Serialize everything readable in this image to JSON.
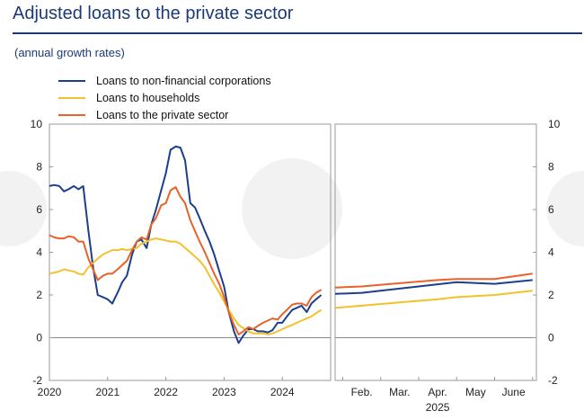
{
  "header": {
    "title": "Adjusted loans to the private sector",
    "subtitle": "(annual growth rates)"
  },
  "chart_data": {
    "type": "line",
    "title": "Adjusted loans to the private sector",
    "subtitle": "(annual growth rates)",
    "ylim": [
      -2,
      10
    ],
    "yticks": [
      -2,
      0,
      2,
      4,
      6,
      8,
      10
    ],
    "legend_position": "top-left",
    "grid": false,
    "panels": [
      {
        "name": "monthly",
        "xlim": [
          2020,
          2024.83
        ],
        "xticks": [
          2020,
          2021,
          2022,
          2023,
          2024
        ],
        "xtick_labels": [
          "2020",
          "2021",
          "2022",
          "2023",
          "2024"
        ]
      },
      {
        "name": "2025 projection",
        "xlim": [
          0.8,
          6.1
        ],
        "xticks": [
          1,
          2,
          3,
          4,
          5,
          6
        ],
        "xtick_labels": [
          "Feb.",
          "Mar.",
          "Apr.",
          "May",
          "June"
        ],
        "xtick_positions": [
          1.5,
          2.5,
          3.5,
          4.5,
          5.5
        ],
        "year_label": "2025"
      }
    ],
    "series": [
      {
        "name": "Loans to non-financial corporations",
        "color": "#1c3f8c",
        "panel1": [
          [
            2020.0,
            7.1
          ],
          [
            2020.08,
            7.15
          ],
          [
            2020.17,
            7.1
          ],
          [
            2020.25,
            6.85
          ],
          [
            2020.33,
            6.95
          ],
          [
            2020.42,
            7.1
          ],
          [
            2020.5,
            6.95
          ],
          [
            2020.58,
            7.1
          ],
          [
            2020.67,
            5.0
          ],
          [
            2020.75,
            3.3
          ],
          [
            2020.83,
            2.0
          ],
          [
            2020.92,
            1.9
          ],
          [
            2021.0,
            1.8
          ],
          [
            2021.08,
            1.6
          ],
          [
            2021.17,
            2.1
          ],
          [
            2021.25,
            2.6
          ],
          [
            2021.33,
            2.9
          ],
          [
            2021.42,
            3.9
          ],
          [
            2021.5,
            4.5
          ],
          [
            2021.58,
            4.6
          ],
          [
            2021.67,
            4.2
          ],
          [
            2021.75,
            5.3
          ],
          [
            2021.83,
            6.0
          ],
          [
            2021.92,
            6.9
          ],
          [
            2022.0,
            7.7
          ],
          [
            2022.08,
            8.8
          ],
          [
            2022.17,
            8.95
          ],
          [
            2022.25,
            8.9
          ],
          [
            2022.33,
            8.3
          ],
          [
            2022.42,
            6.3
          ],
          [
            2022.5,
            6.1
          ],
          [
            2022.58,
            5.6
          ],
          [
            2022.67,
            5.0
          ],
          [
            2022.75,
            4.5
          ],
          [
            2022.83,
            3.9
          ],
          [
            2022.92,
            3.1
          ],
          [
            2023.0,
            2.4
          ],
          [
            2023.08,
            1.2
          ],
          [
            2023.17,
            0.3
          ],
          [
            2023.25,
            -0.25
          ],
          [
            2023.33,
            0.1
          ],
          [
            2023.42,
            0.4
          ],
          [
            2023.5,
            0.4
          ],
          [
            2023.58,
            0.3
          ],
          [
            2023.67,
            0.3
          ],
          [
            2023.75,
            0.25
          ],
          [
            2023.83,
            0.35
          ],
          [
            2023.92,
            0.7
          ],
          [
            2024.0,
            0.7
          ],
          [
            2024.08,
            1.0
          ],
          [
            2024.17,
            1.3
          ],
          [
            2024.25,
            1.4
          ],
          [
            2024.33,
            1.5
          ],
          [
            2024.42,
            1.2
          ],
          [
            2024.5,
            1.6
          ],
          [
            2024.58,
            1.8
          ],
          [
            2024.67,
            2.0
          ]
        ],
        "panel2": [
          [
            0.8,
            2.05
          ],
          [
            1.5,
            2.1
          ],
          [
            2.5,
            2.3
          ],
          [
            3.5,
            2.5
          ],
          [
            4.0,
            2.6
          ],
          [
            5.0,
            2.52
          ],
          [
            6.0,
            2.7
          ]
        ]
      },
      {
        "name": "Loans to households",
        "color": "#f2c12e",
        "panel1": [
          [
            2020.0,
            3.0
          ],
          [
            2020.08,
            3.05
          ],
          [
            2020.17,
            3.1
          ],
          [
            2020.25,
            3.2
          ],
          [
            2020.33,
            3.15
          ],
          [
            2020.42,
            3.1
          ],
          [
            2020.5,
            3.0
          ],
          [
            2020.58,
            2.95
          ],
          [
            2020.67,
            3.3
          ],
          [
            2020.75,
            3.5
          ],
          [
            2020.83,
            3.7
          ],
          [
            2020.92,
            3.9
          ],
          [
            2021.0,
            4.0
          ],
          [
            2021.08,
            4.1
          ],
          [
            2021.17,
            4.1
          ],
          [
            2021.25,
            4.15
          ],
          [
            2021.33,
            4.1
          ],
          [
            2021.42,
            4.15
          ],
          [
            2021.5,
            4.2
          ],
          [
            2021.58,
            4.4
          ],
          [
            2021.67,
            4.5
          ],
          [
            2021.75,
            4.6
          ],
          [
            2021.83,
            4.65
          ],
          [
            2021.92,
            4.6
          ],
          [
            2022.0,
            4.55
          ],
          [
            2022.08,
            4.5
          ],
          [
            2022.17,
            4.5
          ],
          [
            2022.25,
            4.4
          ],
          [
            2022.33,
            4.2
          ],
          [
            2022.42,
            4.0
          ],
          [
            2022.5,
            3.8
          ],
          [
            2022.58,
            3.6
          ],
          [
            2022.67,
            3.3
          ],
          [
            2022.75,
            2.9
          ],
          [
            2022.83,
            2.5
          ],
          [
            2022.92,
            2.1
          ],
          [
            2023.0,
            1.7
          ],
          [
            2023.08,
            1.3
          ],
          [
            2023.17,
            0.9
          ],
          [
            2023.25,
            0.6
          ],
          [
            2023.33,
            0.45
          ],
          [
            2023.42,
            0.3
          ],
          [
            2023.5,
            0.2
          ],
          [
            2023.58,
            0.2
          ],
          [
            2023.67,
            0.2
          ],
          [
            2023.75,
            0.15
          ],
          [
            2023.83,
            0.2
          ],
          [
            2023.92,
            0.3
          ],
          [
            2024.0,
            0.4
          ],
          [
            2024.08,
            0.5
          ],
          [
            2024.17,
            0.6
          ],
          [
            2024.25,
            0.7
          ],
          [
            2024.33,
            0.8
          ],
          [
            2024.42,
            0.9
          ],
          [
            2024.5,
            1.0
          ],
          [
            2024.58,
            1.15
          ],
          [
            2024.67,
            1.3
          ]
        ],
        "panel2": [
          [
            0.8,
            1.4
          ],
          [
            1.5,
            1.5
          ],
          [
            2.5,
            1.65
          ],
          [
            3.5,
            1.8
          ],
          [
            4.0,
            1.9
          ],
          [
            5.0,
            2.0
          ],
          [
            6.0,
            2.2
          ]
        ]
      },
      {
        "name": "Loans to the private sector",
        "color": "#e8622a",
        "panel1": [
          [
            2020.0,
            4.8
          ],
          [
            2020.08,
            4.7
          ],
          [
            2020.17,
            4.65
          ],
          [
            2020.25,
            4.65
          ],
          [
            2020.33,
            4.75
          ],
          [
            2020.42,
            4.7
          ],
          [
            2020.5,
            4.5
          ],
          [
            2020.58,
            4.5
          ],
          [
            2020.67,
            3.7
          ],
          [
            2020.75,
            3.2
          ],
          [
            2020.83,
            2.7
          ],
          [
            2020.92,
            2.9
          ],
          [
            2021.0,
            3.0
          ],
          [
            2021.08,
            3.0
          ],
          [
            2021.17,
            3.2
          ],
          [
            2021.25,
            3.4
          ],
          [
            2021.33,
            3.6
          ],
          [
            2021.42,
            4.1
          ],
          [
            2021.5,
            4.5
          ],
          [
            2021.58,
            4.7
          ],
          [
            2021.67,
            4.6
          ],
          [
            2021.75,
            5.3
          ],
          [
            2021.83,
            5.6
          ],
          [
            2021.92,
            6.2
          ],
          [
            2022.0,
            6.3
          ],
          [
            2022.08,
            6.9
          ],
          [
            2022.17,
            7.05
          ],
          [
            2022.25,
            6.6
          ],
          [
            2022.33,
            6.3
          ],
          [
            2022.42,
            5.5
          ],
          [
            2022.5,
            5.0
          ],
          [
            2022.58,
            4.5
          ],
          [
            2022.67,
            4.0
          ],
          [
            2022.75,
            3.5
          ],
          [
            2022.83,
            3.0
          ],
          [
            2022.92,
            2.5
          ],
          [
            2023.0,
            1.9
          ],
          [
            2023.08,
            1.2
          ],
          [
            2023.17,
            0.6
          ],
          [
            2023.25,
            0.15
          ],
          [
            2023.33,
            0.3
          ],
          [
            2023.42,
            0.5
          ],
          [
            2023.5,
            0.4
          ],
          [
            2023.58,
            0.55
          ],
          [
            2023.67,
            0.7
          ],
          [
            2023.75,
            0.8
          ],
          [
            2023.83,
            0.9
          ],
          [
            2023.92,
            0.85
          ],
          [
            2024.0,
            1.1
          ],
          [
            2024.08,
            1.3
          ],
          [
            2024.17,
            1.55
          ],
          [
            2024.25,
            1.6
          ],
          [
            2024.33,
            1.6
          ],
          [
            2024.42,
            1.5
          ],
          [
            2024.5,
            1.9
          ],
          [
            2024.58,
            2.1
          ],
          [
            2024.67,
            2.25
          ]
        ],
        "panel2": [
          [
            0.8,
            2.35
          ],
          [
            1.5,
            2.4
          ],
          [
            2.5,
            2.55
          ],
          [
            3.5,
            2.7
          ],
          [
            4.0,
            2.75
          ],
          [
            5.0,
            2.75
          ],
          [
            6.0,
            3.0
          ]
        ]
      }
    ]
  }
}
